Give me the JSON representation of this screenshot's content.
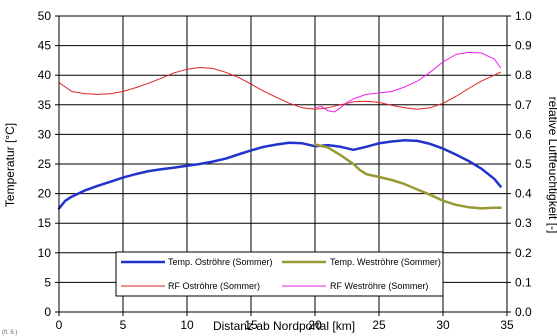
{
  "chart_data": {
    "type": "line",
    "xlabel": "Distanz ab Nordportal [km]",
    "ylabel": "Temperatur [°C]",
    "y2label": "relative Luftfeuchtigkeit [-]",
    "xlim": [
      0,
      35
    ],
    "ylim": [
      0,
      50
    ],
    "y2lim": [
      0.0,
      1.0
    ],
    "x_ticks": [
      "0",
      "5",
      "10",
      "15",
      "20",
      "25",
      "30",
      "35"
    ],
    "y_ticks": [
      "0",
      "5",
      "10",
      "15",
      "20",
      "25",
      "30",
      "35",
      "40",
      "45",
      "50"
    ],
    "y2_ticks": [
      "0.0",
      "0.1",
      "0.2",
      "0.3",
      "0.4",
      "0.5",
      "0.6",
      "0.7",
      "0.8",
      "0.9",
      "1.0"
    ],
    "grid": true,
    "legend_position": "bottom-center",
    "footnote": "(fl. 6.)",
    "series": [
      {
        "name": "Temp. Oströhre (Sommer)",
        "axis": "left",
        "color": "#2233cc",
        "width": 2.5,
        "x": [
          0,
          0.5,
          1,
          2,
          3,
          4,
          5,
          6,
          7,
          8,
          9,
          10,
          11,
          12,
          13,
          14,
          15,
          16,
          17,
          18,
          19,
          20,
          21,
          22,
          23,
          24,
          25,
          26,
          27,
          28,
          29,
          30,
          31,
          32,
          33,
          34,
          34.5
        ],
        "y": [
          17.5,
          18.8,
          19.5,
          20.5,
          21.3,
          22.0,
          22.7,
          23.3,
          23.8,
          24.1,
          24.4,
          24.7,
          25.0,
          25.4,
          25.9,
          26.6,
          27.3,
          27.9,
          28.3,
          28.6,
          28.5,
          28.0,
          28.2,
          27.9,
          27.4,
          27.9,
          28.5,
          28.8,
          29.0,
          28.9,
          28.4,
          27.6,
          26.6,
          25.5,
          24.2,
          22.5,
          21.2
        ]
      },
      {
        "name": "Temp. Weströhre (Sommer)",
        "axis": "left",
        "color": "#999933",
        "width": 2.5,
        "x": [
          20,
          21,
          22,
          23,
          23.5,
          24,
          25,
          26,
          27,
          28,
          29,
          30,
          31,
          32,
          33,
          34,
          34.5
        ],
        "y": [
          28.3,
          27.8,
          26.5,
          25.0,
          24.0,
          23.3,
          22.8,
          22.3,
          21.6,
          20.7,
          19.8,
          18.8,
          18.1,
          17.7,
          17.5,
          17.6,
          17.6
        ]
      },
      {
        "name": "RF Oströhre (Sommer)",
        "axis": "right",
        "color": "#dd2222",
        "width": 1,
        "x": [
          0,
          1,
          2,
          3,
          4,
          5,
          6,
          7,
          8,
          9,
          10,
          11,
          12,
          13,
          14,
          15,
          16,
          17,
          18,
          19,
          20,
          21,
          22,
          23,
          24,
          25,
          26,
          27,
          28,
          29,
          30,
          31,
          32,
          33,
          34,
          34.5
        ],
        "y": [
          0.775,
          0.745,
          0.738,
          0.735,
          0.737,
          0.745,
          0.758,
          0.773,
          0.79,
          0.808,
          0.82,
          0.826,
          0.823,
          0.81,
          0.793,
          0.77,
          0.746,
          0.725,
          0.705,
          0.69,
          0.685,
          0.69,
          0.7,
          0.71,
          0.712,
          0.708,
          0.698,
          0.69,
          0.685,
          0.69,
          0.705,
          0.728,
          0.755,
          0.78,
          0.8,
          0.81
        ]
      },
      {
        "name": "RF Weströhre (Sommer)",
        "axis": "right",
        "color": "#ee22ee",
        "width": 1,
        "x": [
          20,
          20.5,
          21,
          21.5,
          22,
          22.5,
          23,
          24,
          25,
          26,
          27,
          28,
          29,
          30,
          31,
          32,
          33,
          34,
          34.5
        ],
        "y": [
          0.69,
          0.695,
          0.68,
          0.676,
          0.69,
          0.708,
          0.72,
          0.735,
          0.74,
          0.745,
          0.76,
          0.78,
          0.81,
          0.845,
          0.87,
          0.877,
          0.875,
          0.855,
          0.825
        ]
      }
    ]
  }
}
